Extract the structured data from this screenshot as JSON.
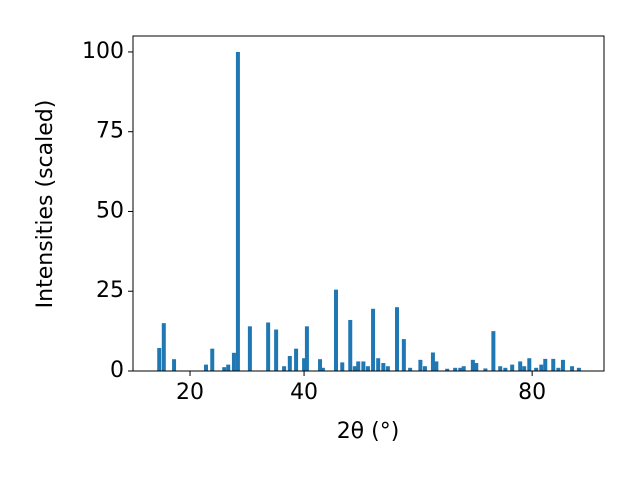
{
  "chart_data": {
    "type": "bar",
    "xlabel": "2θ (°)",
    "ylabel": "Intensities (scaled)",
    "x": [
      14.6,
      15.4,
      17.2,
      22.8,
      23.9,
      26,
      26.7,
      27.7,
      28.4,
      30.5,
      33.7,
      35.1,
      36.5,
      37.5,
      38.6,
      40,
      40.5,
      42.8,
      43.3,
      45.6,
      46.7,
      48.1,
      48.9,
      49.5,
      50.4,
      51.2,
      52.1,
      53,
      53.9,
      54.7,
      56.3,
      57.5,
      58.6,
      60.4,
      61.2,
      62.6,
      63.2,
      65.1,
      66.5,
      67.4,
      68,
      69.6,
      70.2,
      71.8,
      73.2,
      74.4,
      75.3,
      76.5,
      77.9,
      78.6,
      79.5,
      80.7,
      81.6,
      82.3,
      83.7,
      84.6,
      85.4,
      87,
      88.2
    ],
    "values": [
      7.2,
      15,
      3.7,
      2,
      7,
      1.2,
      2,
      5.7,
      100,
      14,
      15.2,
      13,
      1.5,
      4.7,
      7,
      4,
      14,
      3.7,
      1,
      25.5,
      2.7,
      16,
      1.5,
      3,
      3,
      1.5,
      19.5,
      4,
      2.5,
      1.5,
      20,
      10,
      1,
      3.5,
      1.5,
      5.8,
      3,
      0.7,
      1,
      1,
      1.5,
      3.5,
      2.5,
      0.8,
      12.5,
      1.5,
      1,
      2,
      3,
      1.5,
      4,
      1,
      2,
      3.8,
      3.8,
      1,
      3.5,
      1.5,
      1
    ],
    "color": "#1f77b4",
    "xlim": [
      10,
      92.6
    ],
    "xticks": [
      20,
      40,
      80
    ],
    "ylim": [
      0,
      105
    ],
    "yticks": [
      0,
      25,
      50,
      75,
      100
    ],
    "grid": false
  }
}
